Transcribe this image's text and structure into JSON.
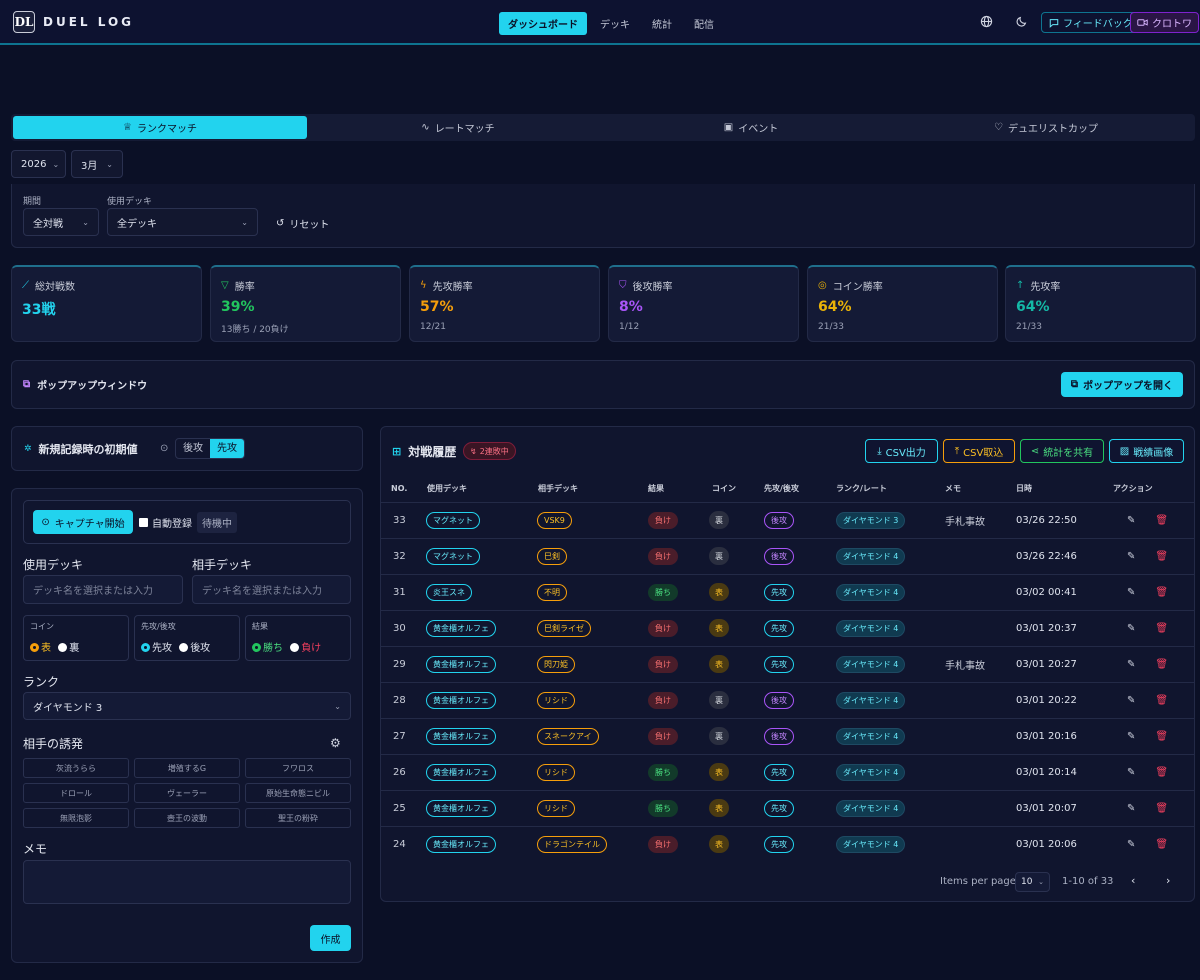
{
  "header": {
    "logo": "DL",
    "app_name": "DUEL LOG",
    "nav": [
      "ダッシュボード",
      "デッキ",
      "統計",
      "配信"
    ],
    "feedback": "フィードバック",
    "user": "クロトワ"
  },
  "tabs": [
    "ランクマッチ",
    "レートマッチ",
    "イベント",
    "デュエリストカップ"
  ],
  "date": {
    "year": "2026",
    "month": "3月"
  },
  "filters": {
    "period_label": "期間",
    "period_value": "全対戦",
    "deck_label": "使用デッキ",
    "deck_value": "全デッキ",
    "reset": "リセット"
  },
  "stats": [
    {
      "title": "総対戦数",
      "value": "33戦",
      "sub": "",
      "color": "#22d3ee",
      "icon": "sword-icon"
    },
    {
      "title": "勝率",
      "value": "39%",
      "sub": "13勝ち / 20負け",
      "color": "#22c55e",
      "icon": "trophy-icon"
    },
    {
      "title": "先攻勝率",
      "value": "57%",
      "sub": "12/21",
      "color": "#f59e0b",
      "icon": "bolt-icon"
    },
    {
      "title": "後攻勝率",
      "value": "8%",
      "sub": "1/12",
      "color": "#a855f7",
      "icon": "shield-icon"
    },
    {
      "title": "コイン勝率",
      "value": "64%",
      "sub": "21/33",
      "color": "#eab308",
      "icon": "coin-icon"
    },
    {
      "title": "先攻率",
      "value": "64%",
      "sub": "21/33",
      "color": "#14b8a6",
      "icon": "arrow-up-icon"
    }
  ],
  "popup": {
    "title": "ポップアップウィンドウ",
    "button": "ポップアップを開く"
  },
  "defaults": {
    "title": "新規記録時の初期値",
    "opt_go": "後攻",
    "opt_sen": "先攻"
  },
  "form": {
    "capture": "キャプチャ開始",
    "auto": "自動登録",
    "status": "待機中",
    "my_deck_label": "使用デッキ",
    "op_deck_label": "相手デッキ",
    "deck_placeholder": "デッキ名を選択または入力",
    "coin_label": "コイン",
    "coin_a": "表",
    "coin_b": "裏",
    "turn_label": "先攻/後攻",
    "turn_a": "先攻",
    "turn_b": "後攻",
    "result_label": "結果",
    "result_a": "勝ち",
    "result_b": "負け",
    "rank_label": "ランク",
    "rank_value": "ダイヤモンド 3",
    "hand_label": "相手の誘発",
    "hands": [
      "灰流うらら",
      "増殖するG",
      "フワロス",
      "ドロール",
      "ヴェーラー",
      "原始生命態ニビル",
      "無限泡影",
      "壺王の波動",
      "聖王の粉砕"
    ],
    "memo_label": "メモ",
    "create": "作成"
  },
  "history": {
    "title": "対戦履歴",
    "streak": "2連敗中",
    "buttons": [
      "CSV出力",
      "CSV取込",
      "統計を共有",
      "戦績画像"
    ],
    "columns": [
      "NO.",
      "使用デッキ",
      "相手デッキ",
      "結果",
      "コイン",
      "先攻/後攻",
      "ランク/レート",
      "メモ",
      "日時",
      "アクション"
    ],
    "rows": [
      {
        "no": "33",
        "my": "マグネット",
        "op": "VSK9",
        "result": "負け",
        "coin": "裏",
        "turn": "後攻",
        "rank": "ダイヤモンド 3",
        "memo": "手札事故",
        "date": "03/26 22:50"
      },
      {
        "no": "32",
        "my": "マグネット",
        "op": "巳剣",
        "result": "負け",
        "coin": "裏",
        "turn": "後攻",
        "rank": "ダイヤモンド 4",
        "memo": "",
        "date": "03/26 22:46"
      },
      {
        "no": "31",
        "my": "炎王スネ",
        "op": "不明",
        "result": "勝ち",
        "coin": "表",
        "turn": "先攻",
        "rank": "ダイヤモンド 4",
        "memo": "",
        "date": "03/02 00:41"
      },
      {
        "no": "30",
        "my": "黄金櫃オルフェ",
        "op": "巳剣ライゼ",
        "result": "負け",
        "coin": "表",
        "turn": "先攻",
        "rank": "ダイヤモンド 4",
        "memo": "",
        "date": "03/01 20:37"
      },
      {
        "no": "29",
        "my": "黄金櫃オルフェ",
        "op": "閃刀姫",
        "result": "負け",
        "coin": "表",
        "turn": "先攻",
        "rank": "ダイヤモンド 4",
        "memo": "手札事故",
        "date": "03/01 20:27"
      },
      {
        "no": "28",
        "my": "黄金櫃オルフェ",
        "op": "リシド",
        "result": "負け",
        "coin": "裏",
        "turn": "後攻",
        "rank": "ダイヤモンド 4",
        "memo": "",
        "date": "03/01 20:22"
      },
      {
        "no": "27",
        "my": "黄金櫃オルフェ",
        "op": "スネークアイ",
        "result": "負け",
        "coin": "裏",
        "turn": "後攻",
        "rank": "ダイヤモンド 4",
        "memo": "",
        "date": "03/01 20:16"
      },
      {
        "no": "26",
        "my": "黄金櫃オルフェ",
        "op": "リシド",
        "result": "勝ち",
        "coin": "表",
        "turn": "先攻",
        "rank": "ダイヤモンド 4",
        "memo": "",
        "date": "03/01 20:14"
      },
      {
        "no": "25",
        "my": "黄金櫃オルフェ",
        "op": "リシド",
        "result": "勝ち",
        "coin": "表",
        "turn": "先攻",
        "rank": "ダイヤモンド 4",
        "memo": "",
        "date": "03/01 20:07"
      },
      {
        "no": "24",
        "my": "黄金櫃オルフェ",
        "op": "ドラゴンテイル",
        "result": "負け",
        "coin": "表",
        "turn": "先攻",
        "rank": "ダイヤモンド 4",
        "memo": "",
        "date": "03/01 20:06"
      }
    ],
    "items_per_page_label": "Items per page:",
    "items_per_page": "10",
    "range": "1-10 of 33"
  }
}
